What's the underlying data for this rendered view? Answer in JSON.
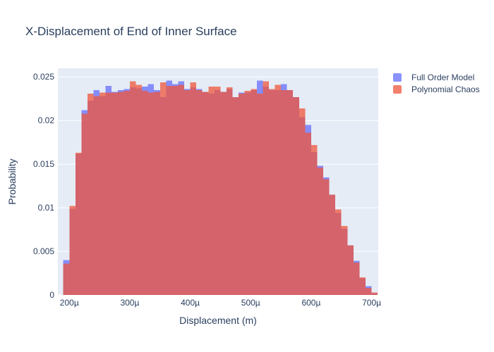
{
  "chart": {
    "title": "X-Displacement of End of Inner Surface"
  },
  "axes": {
    "x": {
      "title": "Displacement (m)",
      "tick_labels": [
        "200µ",
        "300µ",
        "400µ",
        "500µ",
        "600µ",
        "700µ"
      ],
      "tick_values_micro": [
        200,
        300,
        400,
        500,
        600,
        700
      ]
    },
    "y": {
      "title": "Probability",
      "tick_labels": [
        "0",
        "0.005",
        "0.01",
        "0.015",
        "0.02",
        "0.025"
      ],
      "tick_values": [
        0,
        0.005,
        0.01,
        0.015,
        0.02,
        0.025
      ]
    }
  },
  "legend": {
    "items": [
      {
        "label": "Full Order Model",
        "color": "rgba(99,110,250,0.75)"
      },
      {
        "label": "Polynomial Chaos",
        "color": "rgba(239,85,59,0.75)"
      }
    ]
  },
  "colors": {
    "plot_background": "#e5ecf6",
    "gridline": "#ffffff",
    "text": "#2a3f5f",
    "full_order_model": "rgba(99,110,250,0.75)",
    "polynomial_chaos": "rgba(239,85,59,0.75)"
  },
  "chart_data": {
    "type": "bar",
    "subtype": "overlaid-histogram",
    "title": "X-Displacement of End of Inner Surface",
    "xlabel": "Displacement (m)",
    "ylabel": "Probability",
    "x_units": "µm",
    "bin_width_micro": 10,
    "bin_centers_micro": [
      195,
      205,
      215,
      225,
      235,
      245,
      255,
      265,
      275,
      285,
      295,
      305,
      315,
      325,
      335,
      345,
      355,
      365,
      375,
      385,
      395,
      405,
      415,
      425,
      435,
      445,
      455,
      465,
      475,
      485,
      495,
      505,
      515,
      525,
      535,
      545,
      555,
      565,
      575,
      585,
      595,
      605,
      615,
      625,
      635,
      645,
      655,
      665,
      675,
      685,
      695,
      705
    ],
    "series": [
      {
        "name": "Full Order Model",
        "color": "rgba(99,110,250,0.75)",
        "values": [
          0.004,
          0.0099,
          0.0162,
          0.0212,
          0.0223,
          0.0235,
          0.0228,
          0.024,
          0.0233,
          0.0235,
          0.0236,
          0.0238,
          0.0237,
          0.0239,
          0.0242,
          0.0235,
          0.0227,
          0.0246,
          0.0242,
          0.0245,
          0.0236,
          0.0238,
          0.0236,
          0.0233,
          0.0231,
          0.0235,
          0.0233,
          0.0236,
          0.0227,
          0.0232,
          0.0232,
          0.0235,
          0.0246,
          0.0239,
          0.0235,
          0.0235,
          0.0242,
          0.0235,
          0.0227,
          0.0204,
          0.0195,
          0.0164,
          0.0148,
          0.0135,
          0.0115,
          0.0094,
          0.0076,
          0.0057,
          0.0039,
          0.0019,
          0.001,
          0.0002
        ]
      },
      {
        "name": "Polynomial Chaos",
        "color": "rgba(239,85,59,0.75)",
        "values": [
          0.0036,
          0.0102,
          0.0163,
          0.0208,
          0.0231,
          0.0228,
          0.0232,
          0.0232,
          0.0232,
          0.0233,
          0.0234,
          0.0245,
          0.0241,
          0.0234,
          0.0232,
          0.0233,
          0.0244,
          0.024,
          0.024,
          0.0241,
          0.0235,
          0.0244,
          0.0235,
          0.0233,
          0.0239,
          0.0239,
          0.0233,
          0.0238,
          0.0227,
          0.0231,
          0.0234,
          0.0236,
          0.0231,
          0.0245,
          0.0236,
          0.0241,
          0.0235,
          0.0235,
          0.0227,
          0.0214,
          0.0186,
          0.0172,
          0.0146,
          0.0133,
          0.0115,
          0.0098,
          0.0079,
          0.0057,
          0.0037,
          0.002,
          0.0008,
          0.0003
        ]
      }
    ],
    "xlim_micro": [
      181,
      711
    ],
    "ylim": [
      0,
      0.026
    ],
    "grid": "horizontal-only",
    "legend_position": "outside-top-right",
    "draw_order": "Polynomial Chaos drawn over Full Order Model"
  }
}
